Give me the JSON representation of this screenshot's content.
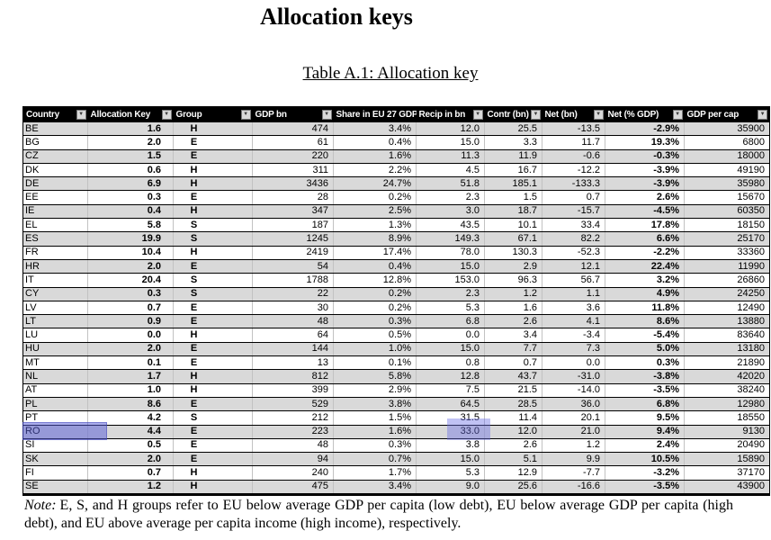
{
  "page": {
    "title": "Allocation keys",
    "table_caption": "Table A.1: Allocation key",
    "note_prefix": "Note:",
    "note_body": "E, S, and H groups refer to EU below average GDP per capita (low debt), EU below average GDP per capita (high debt), and EU above average per capita income (high income), respectively."
  },
  "table": {
    "filter_icon": "▼",
    "columns": [
      {
        "label": "Country",
        "align": "left",
        "bold": false,
        "width": 72
      },
      {
        "label": "Allocation Key",
        "align": "right",
        "bold": true,
        "width": 95
      },
      {
        "label": "Group",
        "align": "center",
        "bold": true,
        "width": 88
      },
      {
        "label": "GDP bn",
        "align": "right",
        "bold": false,
        "width": 90
      },
      {
        "label": "Share in EU 27 GDP",
        "align": "right",
        "bold": false,
        "width": 92
      },
      {
        "label": "Recip in bn",
        "align": "right",
        "bold": false,
        "width": 76
      },
      {
        "label": "Contr (bn)",
        "align": "right",
        "bold": false,
        "width": 64
      },
      {
        "label": "Net (bn)",
        "align": "right",
        "bold": false,
        "width": 70
      },
      {
        "label": "Net (% GDP)",
        "align": "right",
        "bold": true,
        "width": 88
      },
      {
        "label": "GDP per cap",
        "align": "right",
        "bold": false,
        "width": 95
      }
    ],
    "rows": [
      [
        "BE",
        "1.6",
        "H",
        "474",
        "3.4%",
        "12.0",
        "25.5",
        "-13.5",
        "-2.9%",
        "35900"
      ],
      [
        "BG",
        "2.0",
        "E",
        "61",
        "0.4%",
        "15.0",
        "3.3",
        "11.7",
        "19.3%",
        "6800"
      ],
      [
        "CZ",
        "1.5",
        "E",
        "220",
        "1.6%",
        "11.3",
        "11.9",
        "-0.6",
        "-0.3%",
        "18000"
      ],
      [
        "DK",
        "0.6",
        "H",
        "311",
        "2.2%",
        "4.5",
        "16.7",
        "-12.2",
        "-3.9%",
        "49190"
      ],
      [
        "DE",
        "6.9",
        "H",
        "3436",
        "24.7%",
        "51.8",
        "185.1",
        "-133.3",
        "-3.9%",
        "35980"
      ],
      [
        "EE",
        "0.3",
        "E",
        "28",
        "0.2%",
        "2.3",
        "1.5",
        "0.7",
        "2.6%",
        "15670"
      ],
      [
        "IE",
        "0.4",
        "H",
        "347",
        "2.5%",
        "3.0",
        "18.7",
        "-15.7",
        "-4.5%",
        "60350"
      ],
      [
        "EL",
        "5.8",
        "S",
        "187",
        "1.3%",
        "43.5",
        "10.1",
        "33.4",
        "17.8%",
        "18150"
      ],
      [
        "ES",
        "19.9",
        "S",
        "1245",
        "8.9%",
        "149.3",
        "67.1",
        "82.2",
        "6.6%",
        "25170"
      ],
      [
        "FR",
        "10.4",
        "H",
        "2419",
        "17.4%",
        "78.0",
        "130.3",
        "-52.3",
        "-2.2%",
        "33360"
      ],
      [
        "HR",
        "2.0",
        "E",
        "54",
        "0.4%",
        "15.0",
        "2.9",
        "12.1",
        "22.4%",
        "11990"
      ],
      [
        "IT",
        "20.4",
        "S",
        "1788",
        "12.8%",
        "153.0",
        "96.3",
        "56.7",
        "3.2%",
        "26860"
      ],
      [
        "CY",
        "0.3",
        "S",
        "22",
        "0.2%",
        "2.3",
        "1.2",
        "1.1",
        "4.9%",
        "24250"
      ],
      [
        "LV",
        "0.7",
        "E",
        "30",
        "0.2%",
        "5.3",
        "1.6",
        "3.6",
        "11.8%",
        "12490"
      ],
      [
        "LT",
        "0.9",
        "E",
        "48",
        "0.3%",
        "6.8",
        "2.6",
        "4.1",
        "8.6%",
        "13880"
      ],
      [
        "LU",
        "0.0",
        "H",
        "64",
        "0.5%",
        "0.0",
        "3.4",
        "-3.4",
        "-5.4%",
        "83640"
      ],
      [
        "HU",
        "2.0",
        "E",
        "144",
        "1.0%",
        "15.0",
        "7.7",
        "7.3",
        "5.0%",
        "13180"
      ],
      [
        "MT",
        "0.1",
        "E",
        "13",
        "0.1%",
        "0.8",
        "0.7",
        "0.0",
        "0.3%",
        "21890"
      ],
      [
        "NL",
        "1.7",
        "H",
        "812",
        "5.8%",
        "12.8",
        "43.7",
        "-31.0",
        "-3.8%",
        "42020"
      ],
      [
        "AT",
        "1.0",
        "H",
        "399",
        "2.9%",
        "7.5",
        "21.5",
        "-14.0",
        "-3.5%",
        "38240"
      ],
      [
        "PL",
        "8.6",
        "E",
        "529",
        "3.8%",
        "64.5",
        "28.5",
        "36.0",
        "6.8%",
        "12980"
      ],
      [
        "PT",
        "4.2",
        "S",
        "212",
        "1.5%",
        "31.5",
        "11.4",
        "20.1",
        "9.5%",
        "18550"
      ],
      [
        "RO",
        "4.4",
        "E",
        "223",
        "1.6%",
        "33.0",
        "12.0",
        "21.0",
        "9.4%",
        "9130"
      ],
      [
        "SI",
        "0.5",
        "E",
        "48",
        "0.3%",
        "3.8",
        "2.6",
        "1.2",
        "2.4%",
        "20490"
      ],
      [
        "SK",
        "2.0",
        "E",
        "94",
        "0.7%",
        "15.0",
        "5.1",
        "9.9",
        "10.5%",
        "15890"
      ],
      [
        "FI",
        "0.7",
        "H",
        "240",
        "1.7%",
        "5.3",
        "12.9",
        "-7.7",
        "-3.2%",
        "37170"
      ],
      [
        "SE",
        "1.2",
        "H",
        "475",
        "3.4%",
        "9.0",
        "25.6",
        "-16.6",
        "-3.5%",
        "43900"
      ]
    ],
    "highlighted_row": "RO",
    "highlighted_cell": "33.0"
  },
  "colors": {
    "header_bg": "#000000",
    "header_text": "#ffffff",
    "row_stripe": "#d9d9d9",
    "row_plain": "#ffffff",
    "grid_line": "#000000",
    "col_separator": "#c2c2c2",
    "filter_btn_bg": "#d9d9d9",
    "filter_btn_arrow": "#3a3a3a",
    "highlight": "rgba(84,90,215,0.50)",
    "highlight_light": "rgba(104,110,228,0.42)"
  }
}
